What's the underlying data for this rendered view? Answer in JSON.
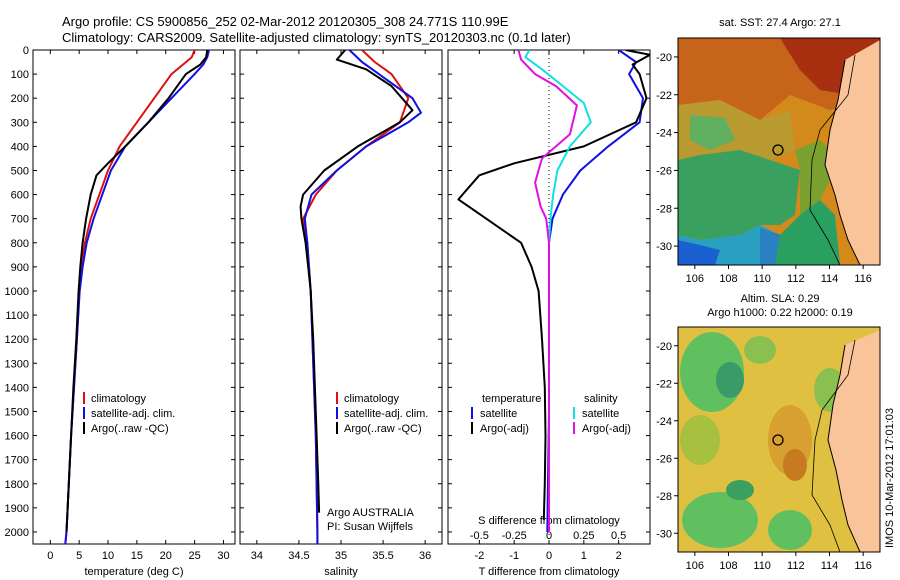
{
  "header": {
    "line1": "Argo profile: CS 5900856_252 02-Mar-2012 20120305_308 24.771S 110.99E",
    "line2": "Climatology: CARS2009. Satellite-adjusted climatology: synTS_20120303.nc (0.1d later)"
  },
  "colors": {
    "climatology": "#e01010",
    "satellite": "#1010e0",
    "argo": "#000000",
    "cyan": "#10e0e0",
    "magenta": "#e010e0",
    "land": "#f9c49a"
  },
  "depth_ticks": [
    "0",
    "100",
    "200",
    "300",
    "400",
    "500",
    "600",
    "700",
    "800",
    "900",
    "1000",
    "1100",
    "1200",
    "1300",
    "1400",
    "1500",
    "1600",
    "1700",
    "1800",
    "1900",
    "2000"
  ],
  "panel_temp": {
    "xlabel": "temperature (deg C)",
    "xticks": [
      "0",
      "5",
      "10",
      "15",
      "20",
      "25",
      "30"
    ],
    "legend": [
      "climatology",
      "satellite-adj. clim.",
      "Argo(..raw -QC)"
    ]
  },
  "panel_sal": {
    "xlabel": "salinity",
    "xticks": [
      "34",
      "34.5",
      "35",
      "35.5",
      "36"
    ],
    "legend": [
      "climatology",
      "satellite-adj. clim.",
      "Argo(..raw -QC)"
    ],
    "note1": "Argo AUSTRALIA",
    "note2": "PI: Susan Wijffels"
  },
  "panel_diff": {
    "xlabel": "T difference from climatology",
    "top_label": "S difference from climatology",
    "xticks_top": [
      "-0.5",
      "-0.25",
      "0",
      "0.25",
      "0.5"
    ],
    "xticks_bottom": [
      "-2",
      "-1",
      "0",
      "1",
      "2"
    ],
    "legend_left_title": "temperature",
    "legend_right_title": "salinity",
    "legend_left": [
      "satellite",
      "Argo(-adj)"
    ],
    "legend_right": [
      "satellite",
      "Argo(-adj)"
    ]
  },
  "map_sst": {
    "title": "sat. SST: 27.4  Argo: 27.1",
    "yticks": [
      "-20",
      "-22",
      "-24",
      "-26",
      "-28",
      "-30"
    ],
    "xticks": [
      "106",
      "108",
      "110",
      "112",
      "114",
      "116"
    ]
  },
  "map_sla": {
    "title1": "Altim. SLA: 0.29",
    "title2": "Argo h1000: 0.22  h2000: 0.19",
    "yticks": [
      "-20",
      "-22",
      "-24",
      "-26",
      "-28",
      "-30"
    ],
    "xticks": [
      "106",
      "108",
      "110",
      "112",
      "114",
      "116"
    ]
  },
  "footer_vertical": "IMOS 10-Mar-2012 17:01:03",
  "chart_data": [
    {
      "type": "line",
      "title": "",
      "xlabel": "temperature (deg C)",
      "ylabel": "",
      "xlim": [
        -3,
        32
      ],
      "ylim": [
        2050,
        0
      ],
      "series": [
        {
          "name": "climatology",
          "color": "#e01010",
          "points": [
            [
              25,
              0
            ],
            [
              24.5,
              30
            ],
            [
              23,
              60
            ],
            [
              21,
              100
            ],
            [
              18,
              200
            ],
            [
              15,
              300
            ],
            [
              12,
              400
            ],
            [
              10,
              500
            ],
            [
              8.5,
              600
            ],
            [
              7,
              700
            ],
            [
              6,
              800
            ],
            [
              5.4,
              900
            ],
            [
              5,
              1000
            ],
            [
              4.6,
              1200
            ],
            [
              4.1,
              1400
            ],
            [
              3.6,
              1600
            ],
            [
              3.2,
              1800
            ],
            [
              2.8,
              2000
            ],
            [
              2.6,
              2050
            ]
          ]
        },
        {
          "name": "satellite-adj. clim.",
          "color": "#1010e0",
          "points": [
            [
              27.5,
              0
            ],
            [
              27.2,
              30
            ],
            [
              26.5,
              60
            ],
            [
              25,
              100
            ],
            [
              21,
              200
            ],
            [
              17,
              300
            ],
            [
              13,
              400
            ],
            [
              10.5,
              500
            ],
            [
              9,
              600
            ],
            [
              7.5,
              700
            ],
            [
              6.3,
              800
            ],
            [
              5.6,
              900
            ],
            [
              5.1,
              1000
            ],
            [
              4.6,
              1200
            ],
            [
              4.1,
              1400
            ],
            [
              3.6,
              1600
            ],
            [
              3.2,
              1800
            ],
            [
              2.8,
              2000
            ],
            [
              2.6,
              2050
            ]
          ]
        },
        {
          "name": "Argo(..raw -QC)",
          "color": "#000000",
          "points": [
            [
              27.2,
              0
            ],
            [
              27,
              30
            ],
            [
              26,
              60
            ],
            [
              23.5,
              100
            ],
            [
              20.5,
              200
            ],
            [
              17,
              300
            ],
            [
              13,
              400
            ],
            [
              10,
              470
            ],
            [
              8,
              520
            ],
            [
              7,
              600
            ],
            [
              6.2,
              700
            ],
            [
              5.6,
              800
            ],
            [
              5.2,
              900
            ],
            [
              4.9,
              1000
            ],
            [
              4.5,
              1200
            ],
            [
              4,
              1400
            ],
            [
              3.6,
              1600
            ],
            [
              3.2,
              1800
            ],
            [
              2.8,
              2000
            ]
          ]
        }
      ]
    },
    {
      "type": "line",
      "title": "",
      "xlabel": "salinity",
      "ylabel": "",
      "xlim": [
        33.8,
        36.2
      ],
      "ylim": [
        2050,
        0
      ],
      "series": [
        {
          "name": "climatology",
          "color": "#e01010",
          "points": [
            [
              35.25,
              0
            ],
            [
              35.4,
              50
            ],
            [
              35.6,
              100
            ],
            [
              35.8,
              200
            ],
            [
              35.7,
              300
            ],
            [
              35.3,
              400
            ],
            [
              34.95,
              500
            ],
            [
              34.7,
              600
            ],
            [
              34.55,
              700
            ],
            [
              34.6,
              800
            ],
            [
              34.62,
              900
            ],
            [
              34.64,
              1000
            ],
            [
              34.66,
              1200
            ],
            [
              34.68,
              1400
            ],
            [
              34.7,
              1600
            ],
            [
              34.71,
              1800
            ],
            [
              34.72,
              2000
            ],
            [
              34.72,
              2050
            ]
          ]
        },
        {
          "name": "satellite-adj. clim.",
          "color": "#1010e0",
          "points": [
            [
              35.1,
              0
            ],
            [
              35.25,
              50
            ],
            [
              35.45,
              100
            ],
            [
              35.85,
              200
            ],
            [
              35.95,
              260
            ],
            [
              35.8,
              300
            ],
            [
              35.3,
              400
            ],
            [
              34.95,
              500
            ],
            [
              34.65,
              600
            ],
            [
              34.57,
              700
            ],
            [
              34.6,
              800
            ],
            [
              34.62,
              900
            ],
            [
              34.64,
              1000
            ],
            [
              34.66,
              1200
            ],
            [
              34.68,
              1400
            ],
            [
              34.7,
              1600
            ],
            [
              34.71,
              1800
            ],
            [
              34.72,
              2000
            ],
            [
              34.72,
              2050
            ]
          ]
        },
        {
          "name": "Argo(..raw -QC)",
          "color": "#000000",
          "points": [
            [
              35.05,
              0
            ],
            [
              34.95,
              40
            ],
            [
              35.3,
              80
            ],
            [
              35.6,
              150
            ],
            [
              35.85,
              250
            ],
            [
              35.7,
              300
            ],
            [
              35.2,
              400
            ],
            [
              34.8,
              500
            ],
            [
              34.55,
              600
            ],
            [
              34.52,
              650
            ],
            [
              34.53,
              700
            ],
            [
              34.58,
              800
            ],
            [
              34.61,
              900
            ],
            [
              34.64,
              1000
            ],
            [
              34.67,
              1200
            ],
            [
              34.69,
              1400
            ],
            [
              34.71,
              1600
            ],
            [
              34.73,
              1800
            ],
            [
              34.74,
              1920
            ]
          ]
        }
      ]
    },
    {
      "type": "line",
      "title": "",
      "xlabel": "T difference from climatology",
      "x2label": "S difference from climatology",
      "ylabel": "",
      "xlim": [
        -2.9,
        2.9
      ],
      "x2lim": [
        -0.725,
        0.725
      ],
      "ylim": [
        2050,
        0
      ],
      "series": [
        {
          "name": "temperature satellite",
          "color": "#1010e0",
          "points": [
            [
              2,
              0
            ],
            [
              2.5,
              50
            ],
            [
              2.3,
              100
            ],
            [
              2.7,
              200
            ],
            [
              2.6,
              300
            ],
            [
              1.7,
              400
            ],
            [
              0.9,
              500
            ],
            [
              0.4,
              600
            ],
            [
              0.1,
              700
            ],
            [
              0,
              800
            ],
            [
              0,
              1000
            ],
            [
              0,
              1500
            ],
            [
              -0.05,
              2000
            ]
          ]
        },
        {
          "name": "temperature Argo(-adj)",
          "color": "#000000",
          "points": [
            [
              2.2,
              0
            ],
            [
              2.9,
              20
            ],
            [
              2.4,
              60
            ],
            [
              2.6,
              100
            ],
            [
              2.8,
              200
            ],
            [
              2.5,
              300
            ],
            [
              1,
              400
            ],
            [
              -1,
              470
            ],
            [
              -2,
              520
            ],
            [
              -2.6,
              620
            ],
            [
              -1.8,
              700
            ],
            [
              -0.8,
              800
            ],
            [
              -0.5,
              900
            ],
            [
              -0.3,
              1000
            ],
            [
              -0.2,
              1200
            ],
            [
              -0.12,
              1400
            ],
            [
              -0.1,
              1600
            ],
            [
              -0.12,
              1800
            ],
            [
              -0.15,
              1950
            ]
          ]
        },
        {
          "name": "salinity satellite",
          "color": "#10e0e0",
          "points": [
            [
              -0.14,
              0
            ],
            [
              -0.17,
              30
            ],
            [
              -0.05,
              80
            ],
            [
              0.1,
              150
            ],
            [
              0.25,
              220
            ],
            [
              0.3,
              300
            ],
            [
              0.15,
              400
            ],
            [
              0.06,
              500
            ],
            [
              0.03,
              600
            ],
            [
              0.01,
              700
            ],
            [
              0,
              800
            ],
            [
              0,
              1000
            ],
            [
              0,
              1500
            ],
            [
              0,
              2000
            ]
          ]
        },
        {
          "name": "salinity Argo(-adj)",
          "color": "#e010e0",
          "points": [
            [
              -0.22,
              0
            ],
            [
              -0.2,
              40
            ],
            [
              -0.1,
              100
            ],
            [
              0.05,
              150
            ],
            [
              0.2,
              230
            ],
            [
              0.15,
              350
            ],
            [
              -0.05,
              450
            ],
            [
              -0.1,
              550
            ],
            [
              -0.06,
              650
            ],
            [
              -0.02,
              700
            ],
            [
              0,
              800
            ],
            [
              0,
              1000
            ],
            [
              0,
              1500
            ],
            [
              0,
              2000
            ]
          ]
        }
      ]
    }
  ]
}
